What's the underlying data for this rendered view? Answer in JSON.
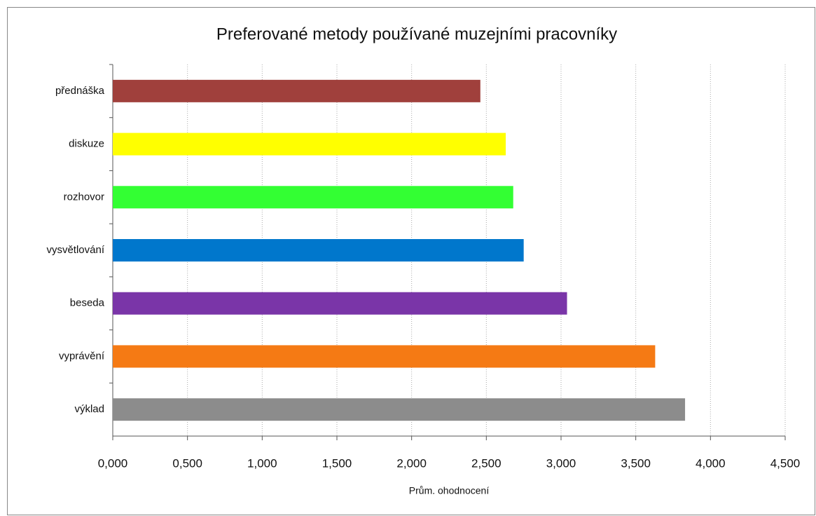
{
  "chart_data": {
    "type": "barh",
    "title": "Preferované metody používané muzejními pracovníky",
    "xlabel": "Prům. ohodnocení",
    "categories": [
      "přednáška",
      "diskuze",
      "rozhovor",
      "vysvětlování",
      "beseda",
      "vyprávění",
      "výklad"
    ],
    "values": [
      2.46,
      2.63,
      2.68,
      2.75,
      3.04,
      3.63,
      3.83
    ],
    "colors": [
      "#a0403c",
      "#ffff00",
      "#33ff33",
      "#0077cc",
      "#7a35a8",
      "#f57a14",
      "#8c8c8c"
    ],
    "xlim": [
      0,
      4.5
    ],
    "xticks": [
      {
        "value": 0,
        "label": "0,000"
      },
      {
        "value": 0.5,
        "label": "0,500"
      },
      {
        "value": 1,
        "label": "1,000"
      },
      {
        "value": 1.5,
        "label": "1,500"
      },
      {
        "value": 2,
        "label": "2,000"
      },
      {
        "value": 2.5,
        "label": "2,500"
      },
      {
        "value": 3,
        "label": "3,000"
      },
      {
        "value": 3.5,
        "label": "3,500"
      },
      {
        "value": 4,
        "label": "4,000"
      },
      {
        "value": 4.5,
        "label": "4,500"
      }
    ],
    "grid": true
  }
}
